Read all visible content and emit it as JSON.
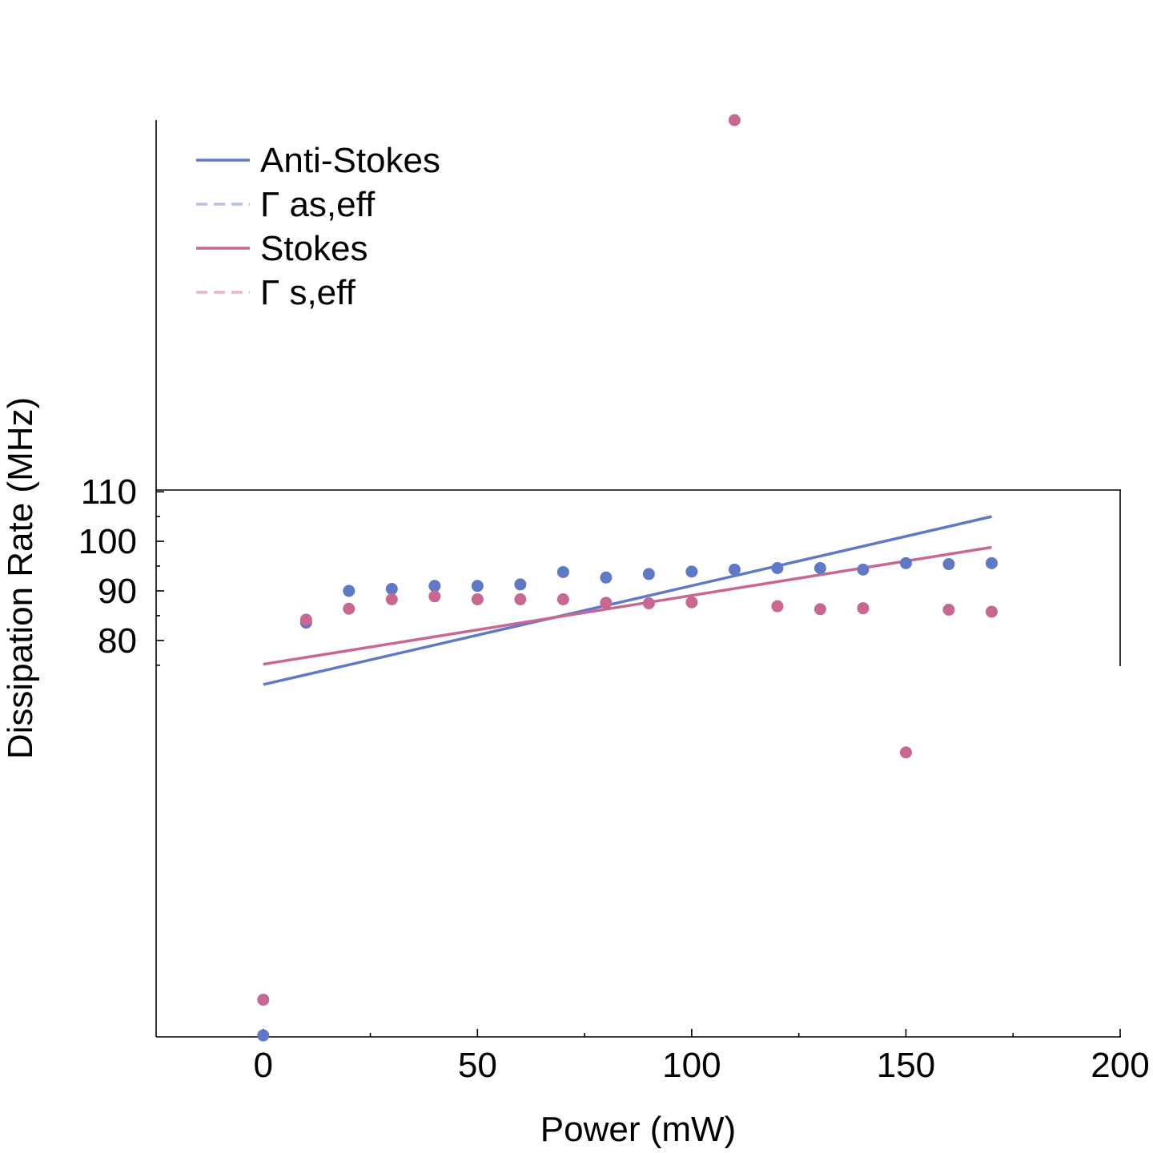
{
  "chart_data": {
    "type": "scatter",
    "xlabel": "Power (mW)",
    "ylabel": "Dissipation Rate (MHz)",
    "xlim": [
      -25,
      200
    ],
    "ylim": [
      0,
      185
    ],
    "x_ticks": [
      0,
      50,
      100,
      150,
      200
    ],
    "x_tick_labels": [
      "0",
      "50",
      "100",
      "150",
      "200"
    ],
    "y_ticks": [
      80,
      90,
      100,
      110
    ],
    "y_tick_labels": [
      "80",
      "90",
      "100",
      "110"
    ],
    "grid": false,
    "legend_position": "top-left",
    "legend": [
      {
        "label": "Anti-Stokes",
        "color": "#6079c6",
        "style": "solid"
      },
      {
        "label": "Γ as,eff",
        "color": "#b6c2e6",
        "style": "dashed"
      },
      {
        "label": "Stokes",
        "color": "#c86792",
        "style": "solid"
      },
      {
        "label": "Γ s,eff",
        "color": "#e8b4c9",
        "style": "dashed"
      }
    ],
    "series": [
      {
        "color": "#6079c6",
        "kind": "points",
        "x": [
          0,
          10,
          20,
          30,
          40,
          50,
          60,
          70,
          80,
          90,
          100,
          110,
          120,
          130,
          140,
          150,
          160,
          170
        ],
        "y": [
          0.3,
          83.6,
          90.0,
          90.4,
          91.0,
          91.0,
          91.3,
          93.8,
          92.7,
          93.4,
          93.9,
          94.3,
          94.6,
          94.6,
          94.3,
          95.6,
          95.4,
          95.6
        ]
      },
      {
        "color": "#c86792",
        "kind": "points",
        "x": [
          0,
          10,
          20,
          30,
          40,
          50,
          60,
          70,
          80,
          90,
          100,
          110,
          120,
          130,
          140,
          150,
          160,
          170
        ],
        "y": [
          7.5,
          84.2,
          86.4,
          88.3,
          88.9,
          88.3,
          88.3,
          88.3,
          87.6,
          87.5,
          87.7,
          185,
          86.9,
          86.3,
          86.5,
          57.4,
          86.2,
          85.8
        ]
      },
      {
        "color": "#6079c6",
        "kind": "fit",
        "x": [
          0,
          170
        ],
        "y": [
          71.1,
          105.0
        ]
      },
      {
        "color": "#c86792",
        "kind": "fit",
        "x": [
          0,
          170
        ],
        "y": [
          75.2,
          98.8
        ]
      }
    ]
  }
}
